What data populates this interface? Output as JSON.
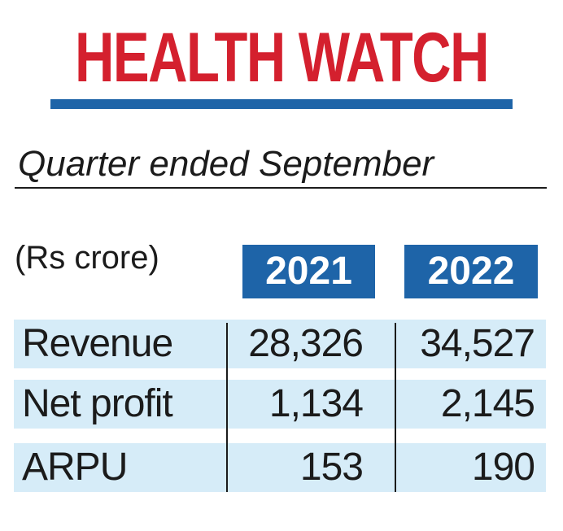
{
  "chart_data": {
    "type": "table",
    "title": "HEALTH WATCH",
    "subtitle": "Quarter ended September",
    "unit_label": "(Rs crore)",
    "columns": [
      "2021",
      "2022"
    ],
    "rows": [
      {
        "label": "Revenue",
        "values": [
          "28,326",
          "34,527"
        ]
      },
      {
        "label": "Net profit",
        "values": [
          "1,134",
          "2,145"
        ]
      },
      {
        "label": "ARPU",
        "values": [
          "153",
          "190"
        ]
      }
    ]
  },
  "colors": {
    "title": "#d4202e",
    "accent": "#1e64a8",
    "row_background": "#d6ecf8",
    "text": "#1b1b1b"
  }
}
